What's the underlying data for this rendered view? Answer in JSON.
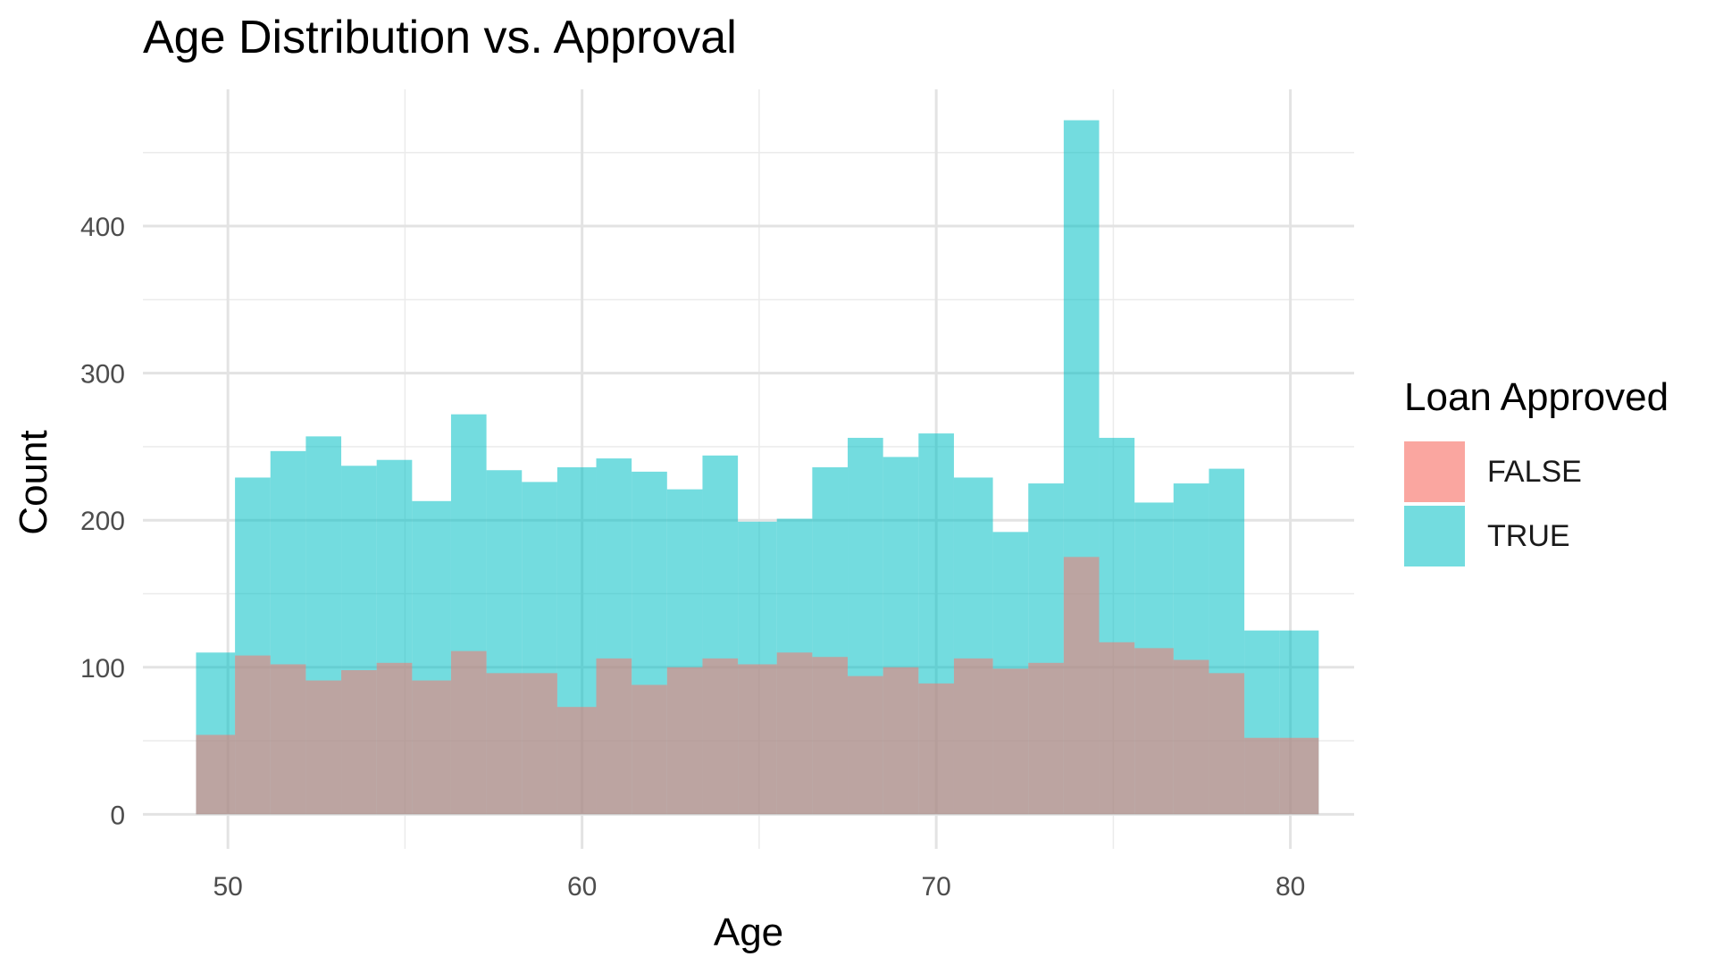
{
  "chart_data": {
    "type": "bar",
    "subtype": "overlapping-histogram",
    "title": "Age Distribution vs. Approval",
    "xlabel": "Age",
    "ylabel": "Count",
    "xlim": [
      47.6,
      81.8
    ],
    "ylim": [
      -23.5,
      493
    ],
    "x_ticks": [
      50,
      60,
      70,
      80
    ],
    "y_ticks": [
      0,
      100,
      200,
      300,
      400
    ],
    "grid": true,
    "legend": {
      "title": "Loan Approved",
      "position": "right"
    },
    "bins": [
      [
        49.1,
        50.2
      ],
      [
        50.2,
        51.2
      ],
      [
        51.2,
        52.2
      ],
      [
        52.2,
        53.2
      ],
      [
        53.2,
        54.2
      ],
      [
        54.2,
        55.2
      ],
      [
        55.2,
        56.3
      ],
      [
        56.3,
        57.3
      ],
      [
        57.3,
        58.3
      ],
      [
        58.3,
        59.3
      ],
      [
        59.3,
        60.4
      ],
      [
        60.4,
        61.4
      ],
      [
        61.4,
        62.4
      ],
      [
        62.4,
        63.4
      ],
      [
        63.4,
        64.4
      ],
      [
        64.4,
        65.5
      ],
      [
        65.5,
        66.5
      ],
      [
        66.5,
        67.5
      ],
      [
        67.5,
        68.5
      ],
      [
        68.5,
        69.5
      ],
      [
        69.5,
        70.5
      ],
      [
        70.5,
        71.6
      ],
      [
        71.6,
        72.6
      ],
      [
        72.6,
        73.6
      ],
      [
        73.6,
        74.6
      ],
      [
        74.6,
        75.6
      ],
      [
        75.6,
        76.7
      ],
      [
        76.7,
        77.7
      ],
      [
        77.7,
        78.7
      ],
      [
        78.7,
        79.7
      ],
      [
        79.7,
        80.8
      ]
    ],
    "series": [
      {
        "name": "FALSE",
        "color": "#F8766D",
        "values": [
          54,
          108,
          102,
          91,
          98,
          103,
          91,
          111,
          96,
          96,
          73,
          106,
          88,
          100,
          106,
          102,
          110,
          107,
          94,
          100,
          89,
          106,
          99,
          103,
          175,
          117,
          113,
          105,
          96,
          52,
          52
        ]
      },
      {
        "name": "TRUE",
        "color": "#00BFC4",
        "values": [
          110,
          229,
          247,
          257,
          237,
          241,
          213,
          272,
          234,
          226,
          236,
          242,
          233,
          221,
          244,
          199,
          201,
          236,
          256,
          243,
          259,
          229,
          192,
          225,
          472,
          256,
          212,
          225,
          235,
          125,
          125
        ]
      }
    ]
  }
}
